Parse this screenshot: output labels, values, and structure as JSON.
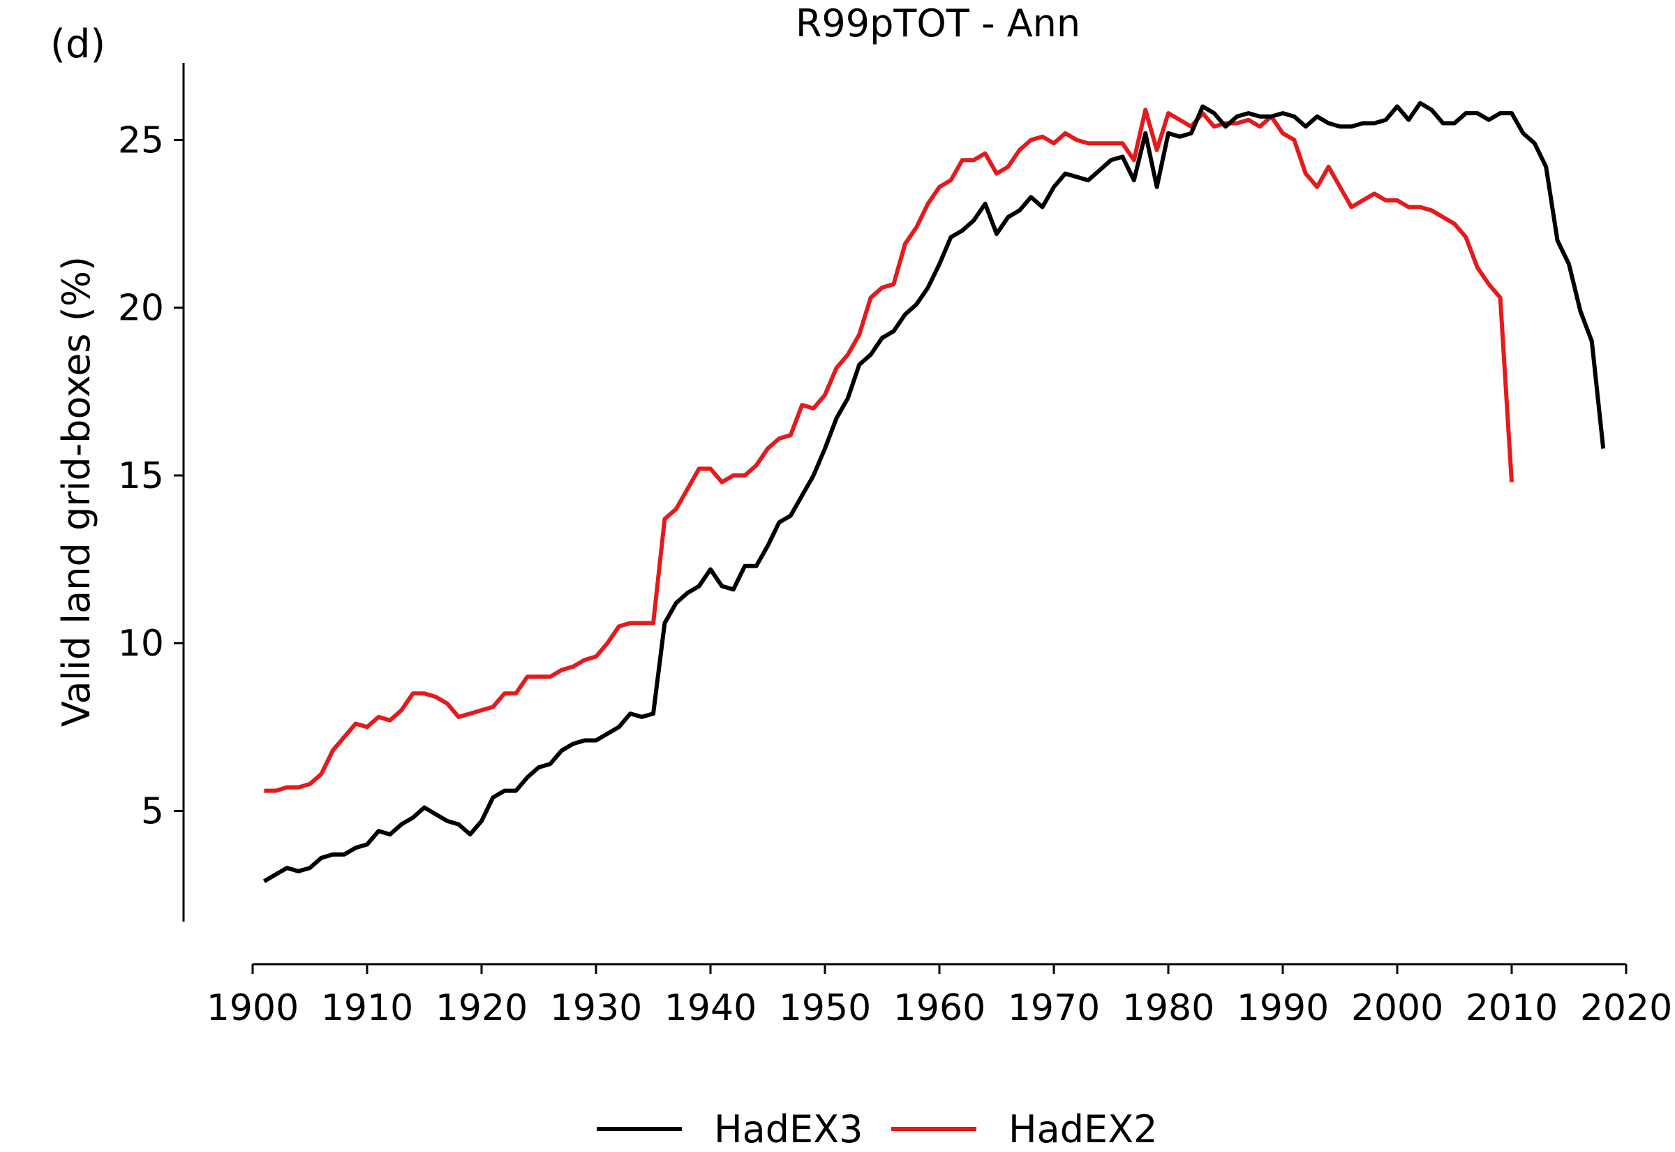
{
  "chart_data": {
    "type": "line",
    "panel_label": "(d)",
    "title": "R99pTOT - Ann",
    "xlabel": "",
    "ylabel": "Valid land grid-boxes (%)",
    "xlim": [
      1900,
      2020
    ],
    "ylim": [
      1.7,
      27.3
    ],
    "x_ticks": [
      1900,
      1910,
      1920,
      1930,
      1940,
      1950,
      1960,
      1970,
      1980,
      1990,
      2000,
      2010,
      2020
    ],
    "y_ticks": [
      5,
      10,
      15,
      20,
      25
    ],
    "x_tick_labels": [
      "1900",
      "1910",
      "1920",
      "1930",
      "1940",
      "1950",
      "1960",
      "1970",
      "1980",
      "1990",
      "2000",
      "2010",
      "2020"
    ],
    "y_tick_labels": [
      "5",
      "10",
      "15",
      "20",
      "25"
    ],
    "grid": false,
    "legend_position": "bottom-center",
    "series": [
      {
        "name": "HadEX3",
        "color": "#000000",
        "x_start": 1901,
        "values": [
          2.9,
          3.1,
          3.3,
          3.2,
          3.3,
          3.6,
          3.7,
          3.7,
          3.9,
          4.0,
          4.4,
          4.3,
          4.6,
          4.8,
          5.1,
          4.9,
          4.7,
          4.6,
          4.3,
          4.7,
          5.4,
          5.6,
          5.6,
          6.0,
          6.3,
          6.4,
          6.8,
          7.0,
          7.1,
          7.1,
          7.3,
          7.5,
          7.9,
          7.8,
          7.9,
          10.6,
          11.2,
          11.5,
          11.7,
          12.2,
          11.7,
          11.6,
          12.3,
          12.3,
          12.9,
          13.6,
          13.8,
          14.4,
          15.0,
          15.8,
          16.7,
          17.3,
          18.3,
          18.6,
          19.1,
          19.3,
          19.8,
          20.1,
          20.6,
          21.3,
          22.1,
          22.3,
          22.6,
          23.1,
          22.2,
          22.7,
          22.9,
          23.3,
          23.0,
          23.6,
          24.0,
          23.9,
          23.8,
          24.1,
          24.4,
          24.5,
          23.8,
          25.2,
          23.6,
          25.2,
          25.1,
          25.2,
          26.0,
          25.8,
          25.4,
          25.7,
          25.8,
          25.7,
          25.7,
          25.8,
          25.7,
          25.4,
          25.7,
          25.5,
          25.4,
          25.4,
          25.5,
          25.5,
          25.6,
          26.0,
          25.6,
          26.1,
          25.9,
          25.5,
          25.5,
          25.8,
          25.8,
          25.6,
          25.8,
          25.8,
          25.2,
          24.9,
          24.2,
          22.0,
          21.3,
          19.9,
          19.0,
          15.8
        ]
      },
      {
        "name": "HadEX2",
        "color": "#e41a1c",
        "x_start": 1901,
        "values": [
          5.6,
          5.6,
          5.7,
          5.7,
          5.8,
          6.1,
          6.8,
          7.2,
          7.6,
          7.5,
          7.8,
          7.7,
          8.0,
          8.5,
          8.5,
          8.4,
          8.2,
          7.8,
          7.9,
          8.0,
          8.1,
          8.5,
          8.5,
          9.0,
          9.0,
          9.0,
          9.2,
          9.3,
          9.5,
          9.6,
          10.0,
          10.5,
          10.6,
          10.6,
          10.6,
          13.7,
          14.0,
          14.6,
          15.2,
          15.2,
          14.8,
          15.0,
          15.0,
          15.3,
          15.8,
          16.1,
          16.2,
          17.1,
          17.0,
          17.4,
          18.2,
          18.6,
          19.2,
          20.3,
          20.6,
          20.7,
          21.9,
          22.4,
          23.1,
          23.6,
          23.8,
          24.4,
          24.4,
          24.6,
          24.0,
          24.2,
          24.7,
          25.0,
          25.1,
          24.9,
          25.2,
          25.0,
          24.9,
          24.9,
          24.9,
          24.9,
          24.4,
          25.9,
          24.7,
          25.8,
          25.6,
          25.4,
          25.8,
          25.4,
          25.5,
          25.5,
          25.6,
          25.4,
          25.7,
          25.2,
          25.0,
          24.0,
          23.6,
          24.2,
          23.6,
          23.0,
          23.2,
          23.4,
          23.2,
          23.2,
          23.0,
          23.0,
          22.9,
          22.7,
          22.5,
          22.1,
          21.2,
          20.7,
          20.3,
          14.8
        ]
      }
    ]
  }
}
